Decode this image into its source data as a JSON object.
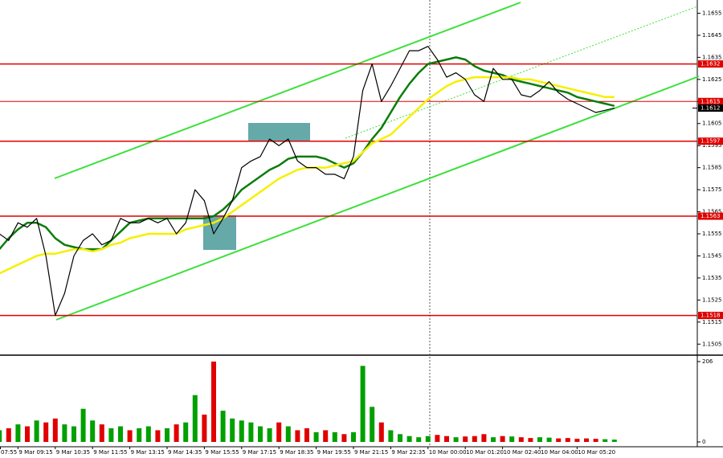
{
  "chart_data": [
    {
      "type": "line",
      "categories": [
        "07:55",
        null,
        null,
        null,
        "9 Mar 09:15",
        null,
        null,
        null,
        "9 Mar 10:35",
        null,
        null,
        null,
        "9 Mar 11:55",
        null,
        null,
        null,
        "9 Mar 13:15",
        null,
        null,
        null,
        "9 Mar 14:35",
        null,
        null,
        null,
        "9 Mar 15:55",
        null,
        null,
        null,
        "9 Mar 17:15",
        null,
        null,
        null,
        "9 Mar 18:35",
        null,
        null,
        null,
        "9 Mar 19:55",
        null,
        null,
        null,
        "9 Mar 21:15",
        null,
        null,
        null,
        "9 Mar 22:35",
        null,
        null,
        null,
        "10 Mar 00:00",
        null,
        null,
        null,
        "10 Mar 01:20",
        null,
        null,
        null,
        "10 Mar 02:40",
        null,
        null,
        null,
        "10 Mar 04:00",
        null,
        null,
        null,
        "10 Mar 05:20",
        null,
        null,
        null,
        null
      ],
      "series": [
        {
          "color": "#000000",
          "values": [
            null,
            null,
            1.1555,
            1.1552,
            1.156,
            1.1558,
            1.1562,
            1.1545,
            1.1518,
            1.1528,
            1.1545,
            1.1552,
            1.1555,
            1.155,
            1.1552,
            1.1562,
            1.156,
            1.156,
            1.1562,
            1.156,
            1.1562,
            1.1555,
            1.156,
            1.1575,
            1.157,
            1.1555,
            1.1562,
            1.157,
            1.1585,
            1.1588,
            1.159,
            1.1598,
            1.1595,
            1.1598,
            1.1588,
            1.1585,
            1.1585,
            1.1582,
            1.1582,
            1.158,
            1.159,
            1.162,
            1.1632,
            1.1615,
            1.1622,
            1.163,
            1.1638,
            1.1638,
            1.164,
            1.1634,
            1.1626,
            1.1628,
            1.1625,
            1.1618,
            1.1615,
            1.163,
            1.1625,
            1.1625,
            1.1618,
            1.1617,
            1.162,
            1.1624,
            1.1619,
            1.1616,
            1.1614,
            1.1612,
            1.161,
            1.1611,
            1.1612
          ]
        },
        {
          "color": "#f5f000",
          "values": [
            null,
            null,
            1.1537,
            1.1539,
            1.1541,
            1.1543,
            1.1545,
            1.1546,
            1.1546,
            1.1547,
            1.1548,
            1.1548,
            1.1547,
            1.1548,
            1.155,
            1.1551,
            1.1553,
            1.1554,
            1.1555,
            1.1555,
            1.1555,
            1.1555,
            1.1557,
            1.1558,
            1.1559,
            1.156,
            1.1562,
            1.1565,
            1.1568,
            1.1571,
            1.1574,
            1.1577,
            1.158,
            1.1582,
            1.1584,
            1.1585,
            1.1585,
            1.1585,
            1.1586,
            1.1587,
            1.1588,
            1.1592,
            1.1596,
            1.1598,
            1.16,
            1.1604,
            1.1608,
            1.1612,
            1.1616,
            1.1619,
            1.1622,
            1.1624,
            1.1625,
            1.1626,
            1.1626,
            1.1626,
            1.1626,
            1.1626,
            1.1625,
            1.1625,
            1.1624,
            1.1623,
            1.1622,
            1.1621,
            1.162,
            1.1619,
            1.1618,
            1.1617,
            1.1617
          ]
        },
        {
          "color": "#0a7d0a",
          "values": [
            null,
            null,
            1.1548,
            1.1553,
            1.1557,
            1.156,
            1.156,
            1.1558,
            1.1553,
            1.155,
            1.1549,
            1.1548,
            1.1548,
            1.1548,
            1.1552,
            1.1556,
            1.156,
            1.1561,
            1.1562,
            1.1562,
            1.1562,
            1.1562,
            1.1562,
            1.1562,
            1.1562,
            1.1563,
            1.1566,
            1.157,
            1.1575,
            1.1578,
            1.1581,
            1.1584,
            1.1586,
            1.1589,
            1.159,
            1.159,
            1.159,
            1.1589,
            1.1587,
            1.1585,
            1.1587,
            1.1592,
            1.1598,
            1.1603,
            1.161,
            1.1617,
            1.1623,
            1.1628,
            1.1632,
            1.1633,
            1.1634,
            1.1635,
            1.1634,
            1.1631,
            1.1629,
            1.1628,
            1.1627,
            1.1625,
            1.1624,
            1.1623,
            1.1622,
            1.1621,
            1.162,
            1.1619,
            1.1617,
            1.1616,
            1.1615,
            1.1614,
            1.1613
          ]
        }
      ],
      "ylim": [
        1.15,
        1.1661
      ],
      "yticks": [
        1.1655,
        1.1645,
        1.1635,
        1.1625,
        1.1615,
        1.1605,
        1.1595,
        1.1585,
        1.1575,
        1.1565,
        1.1555,
        1.1545,
        1.1535,
        1.1525,
        1.1515,
        1.1505
      ],
      "levels": [
        1.1632,
        1.1615,
        1.1597,
        1.1563,
        1.1518
      ],
      "current_price": 1.1612
    },
    {
      "type": "bar",
      "values": [
        null,
        null,
        30,
        35,
        45,
        40,
        55,
        50,
        60,
        45,
        40,
        85,
        55,
        45,
        35,
        40,
        30,
        35,
        40,
        30,
        35,
        45,
        50,
        120,
        70,
        206,
        80,
        60,
        55,
        50,
        40,
        35,
        50,
        40,
        30,
        35,
        25,
        30,
        25,
        20,
        25,
        195,
        90,
        50,
        30,
        20,
        15,
        12,
        15,
        18,
        15,
        12,
        14,
        15,
        20,
        12,
        15,
        14,
        12,
        10,
        12,
        11,
        9,
        10,
        8,
        9,
        8,
        7,
        6
      ],
      "ylim": [
        0,
        206
      ],
      "yticks": [
        0,
        206
      ]
    }
  ]
}
